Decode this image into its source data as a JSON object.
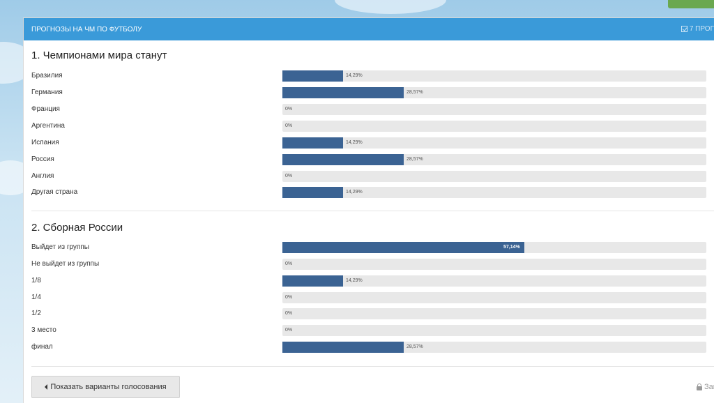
{
  "header": {
    "title": "ПРОГНОЗЫ НА ЧМ ПО ФУТБОЛУ",
    "votes_text": "7 ПРОГ"
  },
  "questions": [
    {
      "title": "1. Чемпионами мира станут",
      "options": [
        {
          "label": "Бразилия",
          "percent_text": "14,29%",
          "value": 14.29
        },
        {
          "label": "Германия",
          "percent_text": "28,57%",
          "value": 28.57
        },
        {
          "label": "Франция",
          "percent_text": "0%",
          "value": 0
        },
        {
          "label": "Аргентина",
          "percent_text": "0%",
          "value": 0
        },
        {
          "label": "Испания",
          "percent_text": "14,29%",
          "value": 14.29
        },
        {
          "label": "Россия",
          "percent_text": "28,57%",
          "value": 28.57
        },
        {
          "label": "Англия",
          "percent_text": "0%",
          "value": 0
        },
        {
          "label": "Другая страна",
          "percent_text": "14,29%",
          "value": 14.29
        }
      ]
    },
    {
      "title": "2. Сборная России",
      "options": [
        {
          "label": "Выйдет из группы",
          "percent_text": "57,14%",
          "value": 57.14
        },
        {
          "label": "Не выйдет из группы",
          "percent_text": "0%",
          "value": 0
        },
        {
          "label": "1/8",
          "percent_text": "14,29%",
          "value": 14.29
        },
        {
          "label": "1/4",
          "percent_text": "0%",
          "value": 0
        },
        {
          "label": "1/2",
          "percent_text": "0%",
          "value": 0
        },
        {
          "label": "3 место",
          "percent_text": "0%",
          "value": 0
        },
        {
          "label": "финал",
          "percent_text": "28,57%",
          "value": 28.57
        }
      ]
    }
  ],
  "footer": {
    "show_button_label": "Показать варианты голосования",
    "closed_text": "Зак"
  },
  "colors": {
    "header_bg": "#3a9ad9",
    "bar_fill": "#3b6393",
    "bar_track": "#e8e8e8"
  }
}
